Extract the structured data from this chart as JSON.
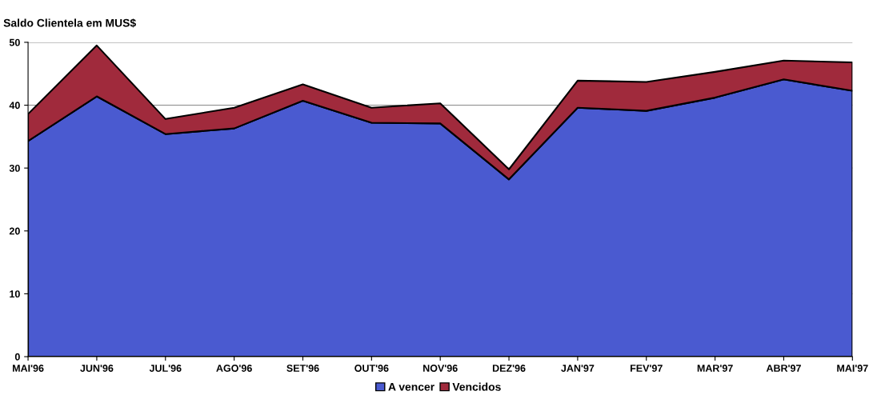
{
  "chart_data": {
    "type": "area",
    "title": "Saldo Clientela em MUS$",
    "stacked": true,
    "categories": [
      "MAI'96",
      "JUN'96",
      "JUL'96",
      "AGO'96",
      "SET'96",
      "OUT'96",
      "NOV'96",
      "DEZ'96",
      "JAN'97",
      "FEV'97",
      "MAR'97",
      "ABR'97",
      "MAI'97"
    ],
    "series": [
      {
        "name": "A vencer",
        "color": "#4a5ad0",
        "values": [
          34.3,
          41.4,
          35.4,
          36.3,
          40.7,
          37.2,
          37.1,
          28.2,
          39.6,
          39.1,
          41.2,
          44.1,
          42.3
        ]
      },
      {
        "name": "Vencidos",
        "color": "#a02a3c",
        "values": [
          4.3,
          8.1,
          2.4,
          3.3,
          2.6,
          2.4,
          3.2,
          1.6,
          4.3,
          4.6,
          4.1,
          3.0,
          4.5
        ]
      }
    ],
    "ylim": [
      0,
      50
    ],
    "yticks": [
      0,
      10,
      20,
      30,
      40,
      50
    ],
    "grid": "y",
    "legend": "bottom"
  }
}
